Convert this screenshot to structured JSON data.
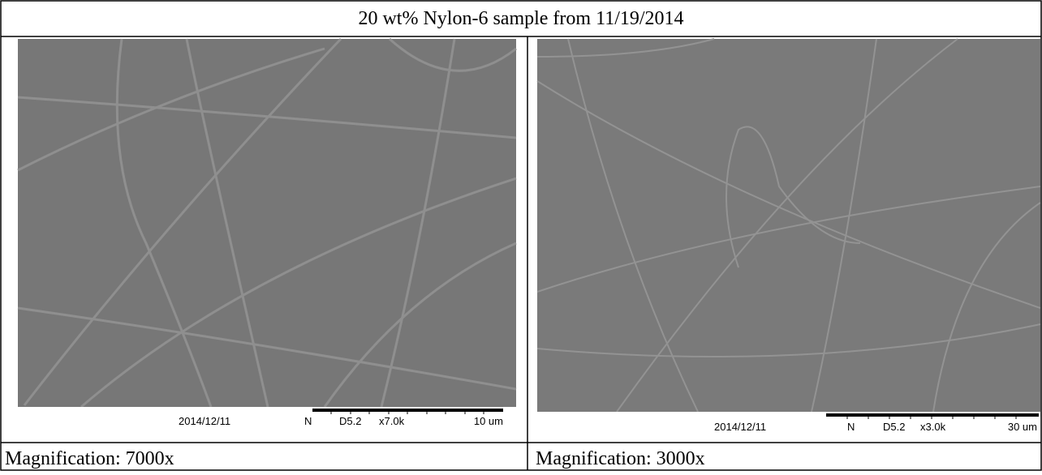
{
  "header": {
    "title": "20 wt% Nylon-6 sample from 11/19/2014"
  },
  "panels": [
    {
      "date": "2014/12/11",
      "mode": "N",
      "distance": "D5.2",
      "magnification": "x7.0k",
      "scale": "10 um",
      "caption": "Magnification: 7000x"
    },
    {
      "date": "2014/12/11",
      "mode": "N",
      "distance": "D5.2",
      "magnification": "x3.0k",
      "scale": "30 um",
      "caption": "Magnification: 3000x"
    }
  ]
}
